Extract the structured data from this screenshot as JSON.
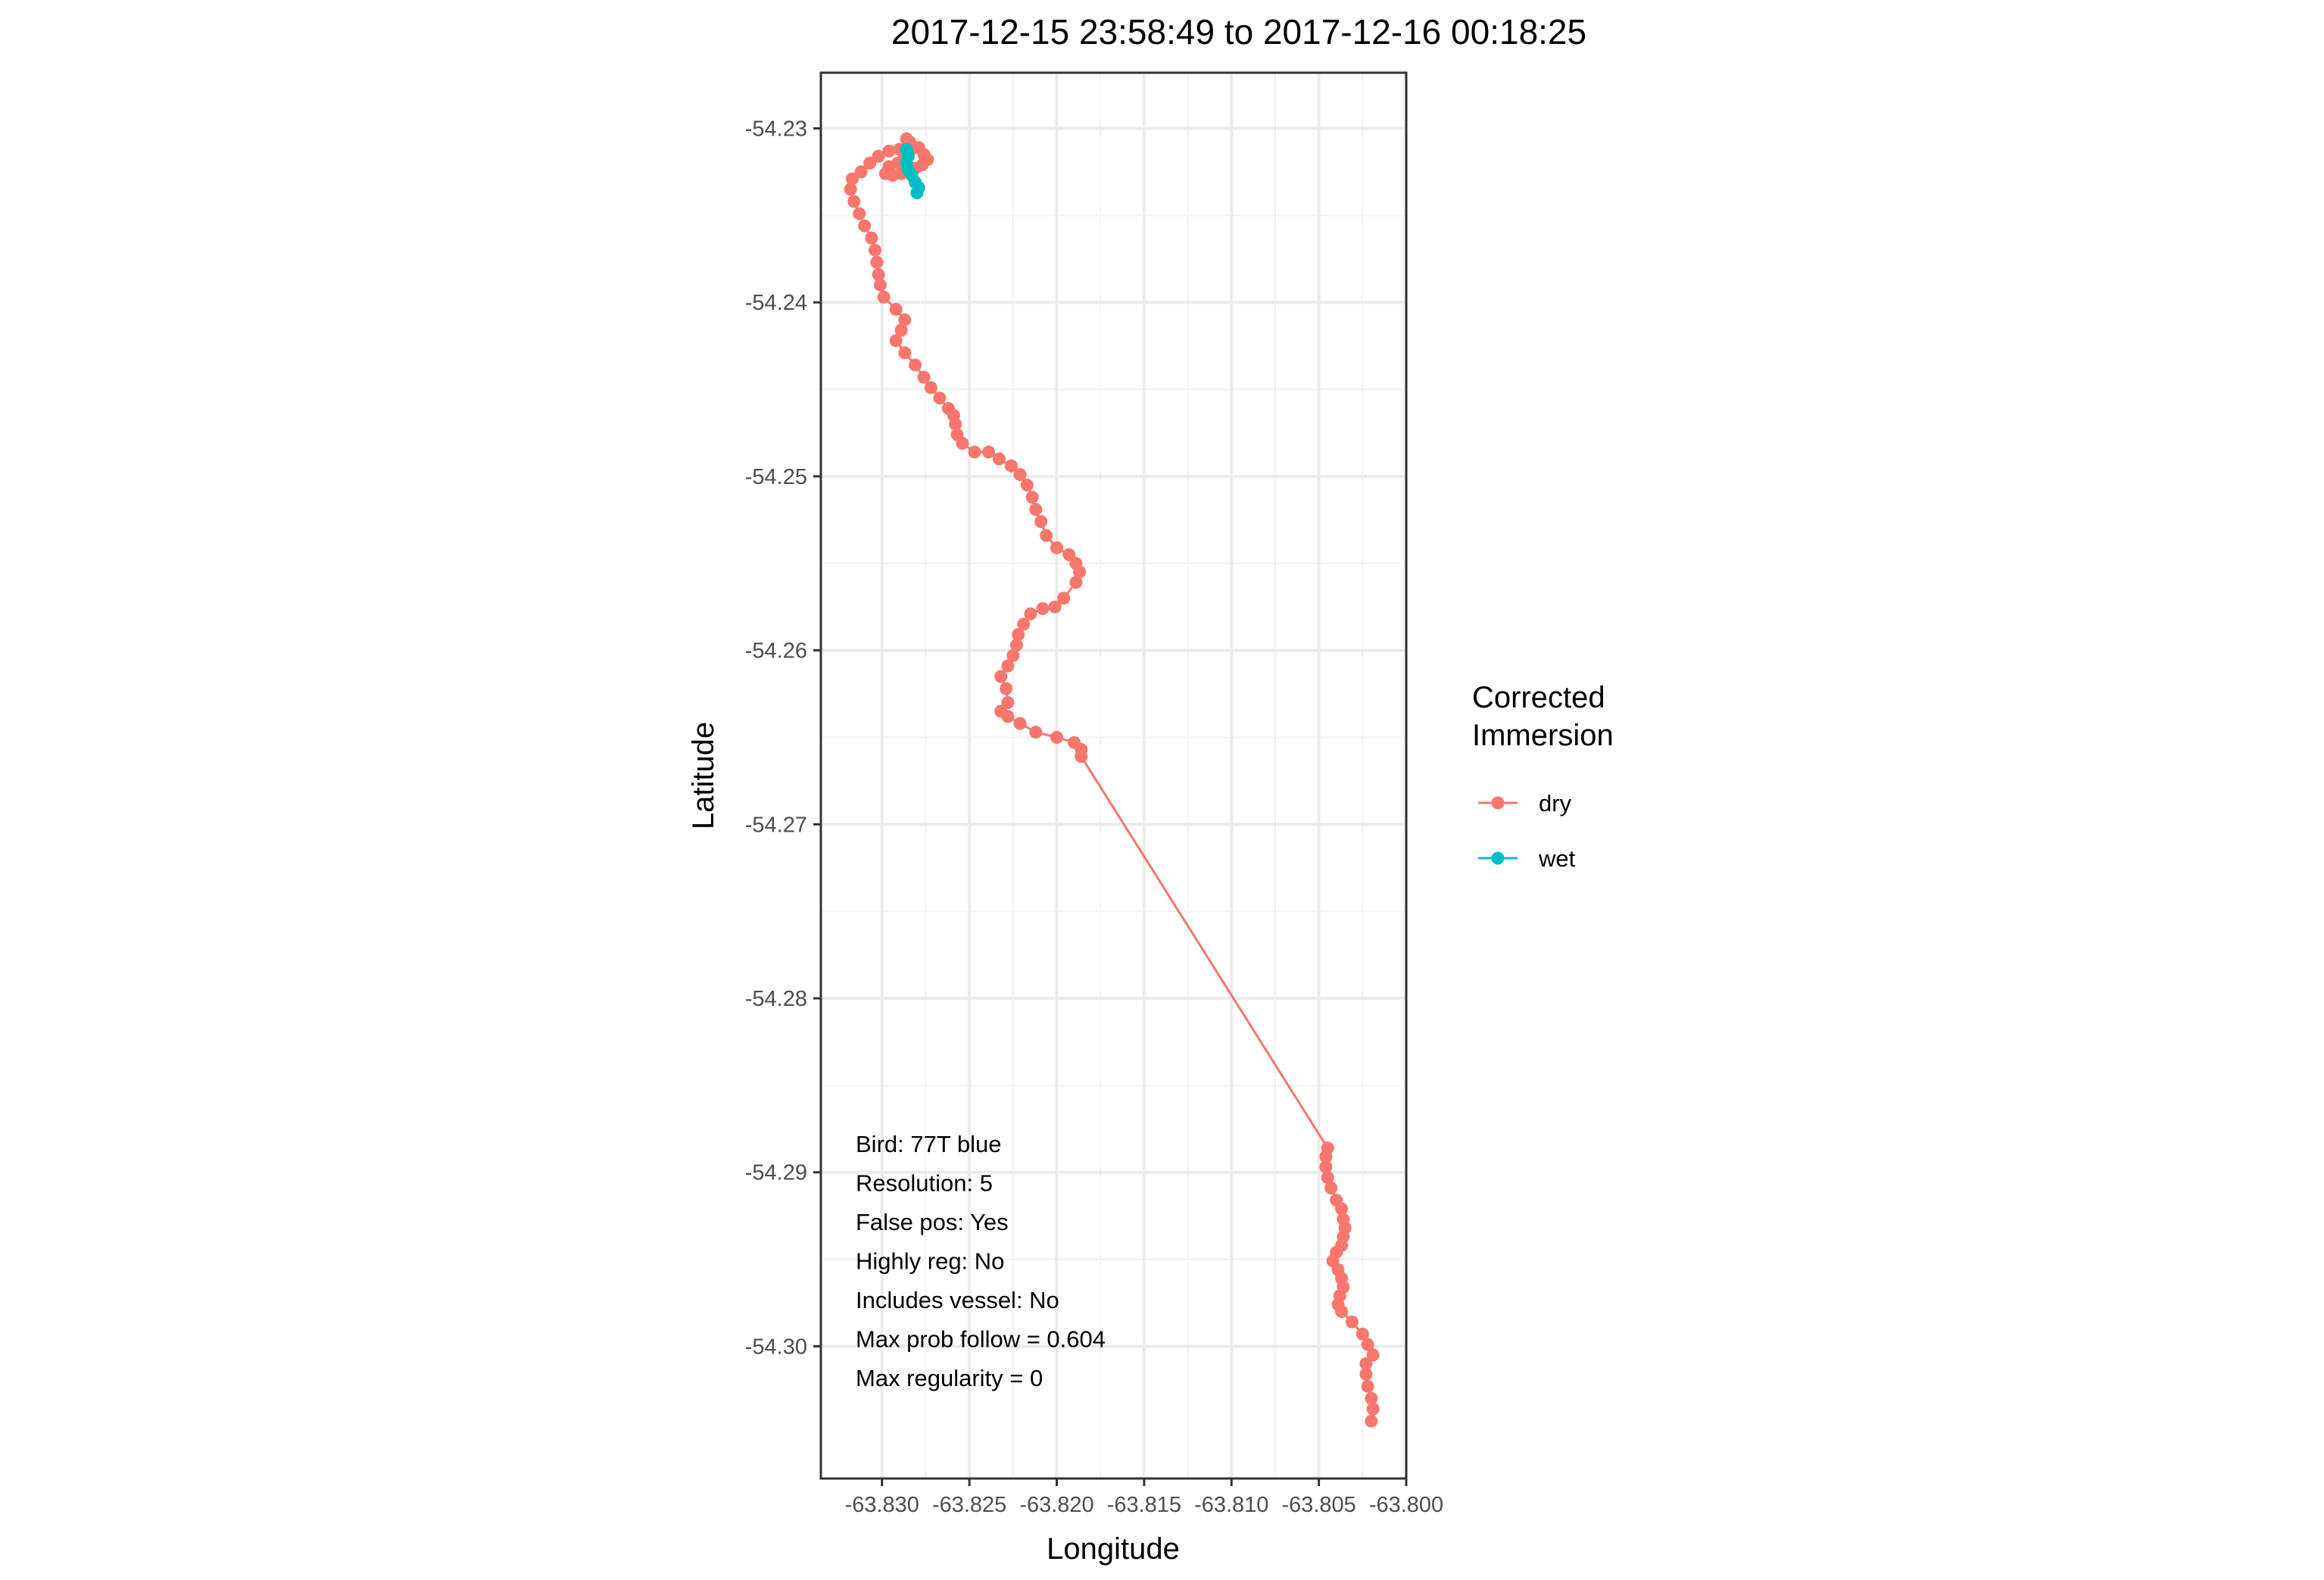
{
  "chart_data": {
    "type": "scatter",
    "title": "2017-12-15 23:58:49 to 2017-12-16 00:18:25",
    "xlabel": "Longitude",
    "ylabel": "Latitude",
    "xlim": [
      -63.8335,
      -63.8
    ],
    "ylim": [
      -54.3076,
      -54.2268
    ],
    "x_ticks": [
      -63.83,
      -63.825,
      -63.82,
      -63.815,
      -63.81,
      -63.805,
      -63.8
    ],
    "x_tick_labels": [
      "-63.830",
      "-63.825",
      "-63.820",
      "-63.815",
      "-63.810",
      "-63.805",
      "-63.800"
    ],
    "y_ticks": [
      -54.23,
      -54.24,
      -54.25,
      -54.26,
      -54.27,
      -54.28,
      -54.29,
      -54.3
    ],
    "y_tick_labels": [
      "-54.23",
      "-54.24",
      "-54.25",
      "-54.26",
      "-54.27",
      "-54.28",
      "-54.29",
      "-54.30"
    ],
    "grid": true,
    "legend": {
      "title": [
        "Corrected",
        "Immersion"
      ],
      "placement": "right",
      "entries": [
        {
          "label": "dry",
          "color": "#F8766D"
        },
        {
          "label": "wet",
          "color": "#00BFC4"
        }
      ]
    },
    "annotations": [
      "Bird: 77T blue",
      "Resolution: 5",
      "False pos: Yes",
      "Highly reg: No",
      "Includes vessel: No",
      "Max prob follow = 0.604",
      "Max regularity = 0"
    ],
    "series": [
      {
        "name": "dry",
        "color": "#F8766D",
        "points": [
          [
            -63.8286,
            -54.2306
          ],
          [
            -63.8284,
            -54.2308
          ],
          [
            -63.8279,
            -54.2311
          ],
          [
            -63.8276,
            -54.2315
          ],
          [
            -63.8274,
            -54.2318
          ],
          [
            -63.8277,
            -54.2321
          ],
          [
            -63.8281,
            -54.2323
          ],
          [
            -63.8285,
            -54.2324
          ],
          [
            -63.8289,
            -54.2326
          ],
          [
            -63.8294,
            -54.2327
          ],
          [
            -63.8298,
            -54.2326
          ],
          [
            -63.8296,
            -54.2322
          ],
          [
            -63.8291,
            -54.232
          ],
          [
            -63.8287,
            -54.2316
          ],
          [
            -63.8284,
            -54.2313
          ],
          [
            -63.829,
            -54.2312
          ],
          [
            -63.8296,
            -54.2313
          ],
          [
            -63.8302,
            -54.2316
          ],
          [
            -63.8307,
            -54.232
          ],
          [
            -63.8312,
            -54.2325
          ],
          [
            -63.8317,
            -54.2329
          ],
          [
            -63.8318,
            -54.2335
          ],
          [
            -63.8316,
            -54.2342
          ],
          [
            -63.8313,
            -54.2349
          ],
          [
            -63.831,
            -54.2356
          ],
          [
            -63.8306,
            -54.2363
          ],
          [
            -63.8304,
            -54.237
          ],
          [
            -63.8303,
            -54.2377
          ],
          [
            -63.8302,
            -54.2384
          ],
          [
            -63.8301,
            -54.239
          ],
          [
            -63.8299,
            -54.2397
          ],
          [
            -63.8292,
            -54.2404
          ],
          [
            -63.8287,
            -54.241
          ],
          [
            -63.8289,
            -54.2416
          ],
          [
            -63.8292,
            -54.2422
          ],
          [
            -63.8287,
            -54.2429
          ],
          [
            -63.8281,
            -54.2436
          ],
          [
            -63.8276,
            -54.2443
          ],
          [
            -63.8272,
            -54.2449
          ],
          [
            -63.8267,
            -54.2455
          ],
          [
            -63.8262,
            -54.2461
          ],
          [
            -63.8259,
            -54.2465
          ],
          [
            -63.8258,
            -54.247
          ],
          [
            -63.8257,
            -54.2476
          ],
          [
            -63.8254,
            -54.2481
          ],
          [
            -63.8247,
            -54.2486
          ],
          [
            -63.8239,
            -54.2486
          ],
          [
            -63.8233,
            -54.249
          ],
          [
            -63.8226,
            -54.2494
          ],
          [
            -63.8221,
            -54.2499
          ],
          [
            -63.8217,
            -54.2505
          ],
          [
            -63.8214,
            -54.2512
          ],
          [
            -63.8212,
            -54.2519
          ],
          [
            -63.8209,
            -54.2526
          ],
          [
            -63.8206,
            -54.2534
          ],
          [
            -63.82,
            -54.2541
          ],
          [
            -63.8193,
            -54.2545
          ],
          [
            -63.8189,
            -54.255
          ],
          [
            -63.8187,
            -54.2555
          ],
          [
            -63.8189,
            -54.2561
          ],
          [
            -63.8196,
            -54.257
          ],
          [
            -63.8201,
            -54.2575
          ],
          [
            -63.8208,
            -54.2576
          ],
          [
            -63.8215,
            -54.2579
          ],
          [
            -63.8219,
            -54.2585
          ],
          [
            -63.8222,
            -54.2591
          ],
          [
            -63.8223,
            -54.2597
          ],
          [
            -63.8225,
            -54.2603
          ],
          [
            -63.8228,
            -54.2609
          ],
          [
            -63.8232,
            -54.2615
          ],
          [
            -63.8229,
            -54.2622
          ],
          [
            -63.8228,
            -54.263
          ],
          [
            -63.8232,
            -54.2635
          ],
          [
            -63.8228,
            -54.2638
          ],
          [
            -63.8221,
            -54.2642
          ],
          [
            -63.8212,
            -54.2647
          ],
          [
            -63.82,
            -54.265
          ],
          [
            -63.819,
            -54.2653
          ],
          [
            -63.8186,
            -54.2657
          ],
          [
            -63.8186,
            -54.2661
          ],
          [
            -63.8045,
            -54.2886
          ],
          [
            -63.8046,
            -54.2891
          ],
          [
            -63.8046,
            -54.2897
          ],
          [
            -63.8045,
            -54.2903
          ],
          [
            -63.8043,
            -54.2909
          ],
          [
            -63.804,
            -54.2916
          ],
          [
            -63.8037,
            -54.2921
          ],
          [
            -63.8036,
            -54.2927
          ],
          [
            -63.8035,
            -54.2932
          ],
          [
            -63.8036,
            -54.2937
          ],
          [
            -63.8037,
            -54.2942
          ],
          [
            -63.804,
            -54.2946
          ],
          [
            -63.8042,
            -54.2951
          ],
          [
            -63.8039,
            -54.2956
          ],
          [
            -63.8037,
            -54.2961
          ],
          [
            -63.8036,
            -54.2966
          ],
          [
            -63.8038,
            -54.2971
          ],
          [
            -63.8039,
            -54.2976
          ],
          [
            -63.8037,
            -54.298
          ],
          [
            -63.8031,
            -54.2986
          ],
          [
            -63.8025,
            -54.2993
          ],
          [
            -63.8022,
            -54.2999
          ],
          [
            -63.8019,
            -54.3005
          ],
          [
            -63.8023,
            -54.301
          ],
          [
            -63.8023,
            -54.3016
          ],
          [
            -63.8022,
            -54.3023
          ],
          [
            -63.802,
            -54.303
          ],
          [
            -63.8019,
            -54.3036
          ],
          [
            -63.802,
            -54.3043
          ]
        ]
      },
      {
        "name": "wet",
        "color": "#00BFC4",
        "points": [
          [
            -63.8286,
            -54.2312
          ],
          [
            -63.8285,
            -54.2316
          ],
          [
            -63.8286,
            -54.232
          ],
          [
            -63.8285,
            -54.2324
          ],
          [
            -63.8283,
            -54.2327
          ],
          [
            -63.8281,
            -54.2331
          ],
          [
            -63.8279,
            -54.2334
          ],
          [
            -63.828,
            -54.2337
          ]
        ]
      }
    ]
  }
}
